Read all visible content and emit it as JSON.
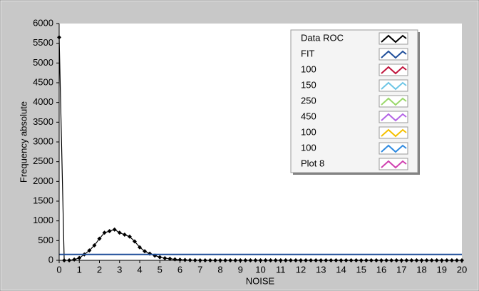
{
  "chart_data": {
    "type": "line",
    "xlabel": "NOISE",
    "ylabel": "Frequency absolute",
    "x": [
      0,
      0.25,
      0.5,
      0.75,
      1,
      1.25,
      1.5,
      1.75,
      2,
      2.25,
      2.5,
      2.75,
      3,
      3.25,
      3.5,
      3.75,
      4,
      4.25,
      4.5,
      4.75,
      5,
      5.25,
      5.5,
      5.75,
      6,
      6.25,
      6.5,
      6.75,
      7,
      7.25,
      7.5,
      7.75,
      8,
      8.25,
      8.5,
      8.75,
      9,
      9.25,
      9.5,
      9.75,
      10,
      10.25,
      10.5,
      10.75,
      11,
      11.25,
      11.5,
      11.75,
      12,
      12.25,
      12.5,
      12.75,
      13,
      13.25,
      13.5,
      13.75,
      14,
      14.25,
      14.5,
      14.75,
      15,
      15.25,
      15.5,
      15.75,
      16,
      16.25,
      16.5,
      16.75,
      17,
      17.25,
      17.5,
      17.75,
      18,
      18.25,
      18.5,
      18.75,
      19,
      19.25,
      19.5,
      19.75,
      20
    ],
    "series": [
      {
        "name": "Data ROC",
        "color": "#000000",
        "values": [
          5650,
          0,
          0,
          20,
          60,
          150,
          250,
          380,
          550,
          700,
          740,
          780,
          700,
          650,
          600,
          480,
          330,
          230,
          170,
          120,
          80,
          55,
          40,
          25,
          15,
          10,
          5,
          3,
          0,
          0,
          0,
          0,
          0,
          0,
          0,
          0,
          0,
          0,
          0,
          0,
          0,
          0,
          0,
          0,
          0,
          0,
          0,
          0,
          0,
          0,
          0,
          0,
          0,
          0,
          0,
          0,
          0,
          0,
          0,
          0,
          0,
          0,
          0,
          0,
          0,
          0,
          0,
          0,
          0,
          0,
          0,
          0,
          0,
          0,
          0,
          0,
          0,
          0,
          0,
          0,
          0
        ]
      },
      {
        "name": "FIT",
        "color": "#1f4e9a",
        "x": [
          0,
          20
        ],
        "values": [
          150,
          150
        ]
      },
      {
        "name": "100",
        "color": "#c0143c"
      },
      {
        "name": "150",
        "color": "#6ec6e6"
      },
      {
        "name": "250",
        "color": "#9ad86a"
      },
      {
        "name": "450",
        "color": "#b464e6"
      },
      {
        "name": "100",
        "color": "#f5c000"
      },
      {
        "name": "100",
        "color": "#2f8ae0"
      },
      {
        "name": "Plot 8",
        "color": "#d040b0"
      }
    ],
    "xlim": [
      0,
      20
    ],
    "xticks": [
      0,
      1,
      2,
      3,
      4,
      5,
      6,
      7,
      8,
      9,
      10,
      11,
      12,
      13,
      14,
      15,
      16,
      17,
      18,
      19,
      20
    ],
    "ylim": [
      0,
      6000
    ],
    "yticks": [
      0,
      500,
      1000,
      1500,
      2000,
      2500,
      3000,
      3500,
      4000,
      4500,
      5000,
      5500,
      6000
    ],
    "grid": false,
    "legend": "upper-right"
  }
}
